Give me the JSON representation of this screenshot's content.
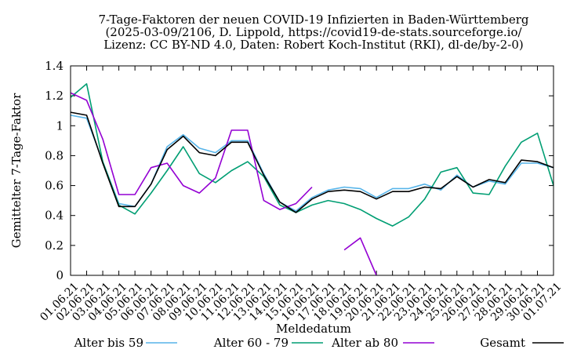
{
  "chart_data": {
    "type": "line",
    "title": [
      "7-Tage-Faktoren der neuen COVID-19 Infizierten in Baden-Württemberg",
      "(2025-03-09/2106, D. Lippold, https://covid19-de-stats.sourceforge.io/",
      "Lizenz: CC BY-ND 4.0, Daten: Robert Koch-Institut (RKI), dl-de/by-2-0)"
    ],
    "xlabel": "Meldedatum",
    "ylabel": "Gemittelter 7-Tage-Faktor",
    "ylim": [
      0,
      1.4
    ],
    "yticks": [
      "0",
      "0.2",
      "0.4",
      "0.6",
      "0.8",
      "1",
      "1.2",
      "1.4"
    ],
    "grid": false,
    "legend_position": "bottom",
    "categories": [
      "01.06.21",
      "02.06.21",
      "03.06.21",
      "04.06.21",
      "05.06.21",
      "06.06.21",
      "07.06.21",
      "08.06.21",
      "09.06.21",
      "10.06.21",
      "11.06.21",
      "12.06.21",
      "13.06.21",
      "14.06.21",
      "15.06.21",
      "16.06.21",
      "17.06.21",
      "18.06.21",
      "19.06.21",
      "20.06.21",
      "21.06.21",
      "22.06.21",
      "23.06.21",
      "24.06.21",
      "25.06.21",
      "26.06.21",
      "27.06.21",
      "28.06.21",
      "29.06.21",
      "30.06.21",
      "01.07.21"
    ],
    "series": [
      {
        "name": "Alter bis 59",
        "color": "#56b4e9",
        "values": [
          1.07,
          1.05,
          0.76,
          0.48,
          0.46,
          0.61,
          0.86,
          0.94,
          0.85,
          0.82,
          0.9,
          0.9,
          0.68,
          0.49,
          0.43,
          0.52,
          0.57,
          0.59,
          0.58,
          0.52,
          0.58,
          0.58,
          0.61,
          0.57,
          0.67,
          0.59,
          0.63,
          0.61,
          0.75,
          0.75,
          0.72
        ]
      },
      {
        "name": "Alter 60 - 79",
        "color": "#009e73",
        "values": [
          1.19,
          1.28,
          0.76,
          0.47,
          0.41,
          0.55,
          0.7,
          0.86,
          0.68,
          0.62,
          0.7,
          0.76,
          0.66,
          0.47,
          0.42,
          0.47,
          0.5,
          0.48,
          0.44,
          0.38,
          0.33,
          0.39,
          0.51,
          0.69,
          0.72,
          0.55,
          0.54,
          0.73,
          0.89,
          0.95,
          0.6
        ]
      },
      {
        "name": "Alter ab 80",
        "color": "#9400d3",
        "values": [
          1.22,
          1.17,
          0.91,
          0.54,
          0.54,
          0.72,
          0.75,
          0.6,
          0.55,
          0.65,
          0.97,
          0.97,
          0.5,
          0.44,
          0.48,
          0.59,
          null,
          0.17,
          0.25,
          0.0,
          null,
          null,
          null,
          null,
          null,
          null,
          null,
          null,
          null,
          null,
          null
        ]
      },
      {
        "name": "Gesamt",
        "color": "#000000",
        "values": [
          1.09,
          1.07,
          0.75,
          0.46,
          0.46,
          0.61,
          0.84,
          0.93,
          0.82,
          0.8,
          0.89,
          0.89,
          0.67,
          0.49,
          0.42,
          0.51,
          0.56,
          0.57,
          0.56,
          0.51,
          0.56,
          0.56,
          0.59,
          0.58,
          0.66,
          0.59,
          0.64,
          0.62,
          0.77,
          0.76,
          0.72
        ]
      }
    ]
  }
}
